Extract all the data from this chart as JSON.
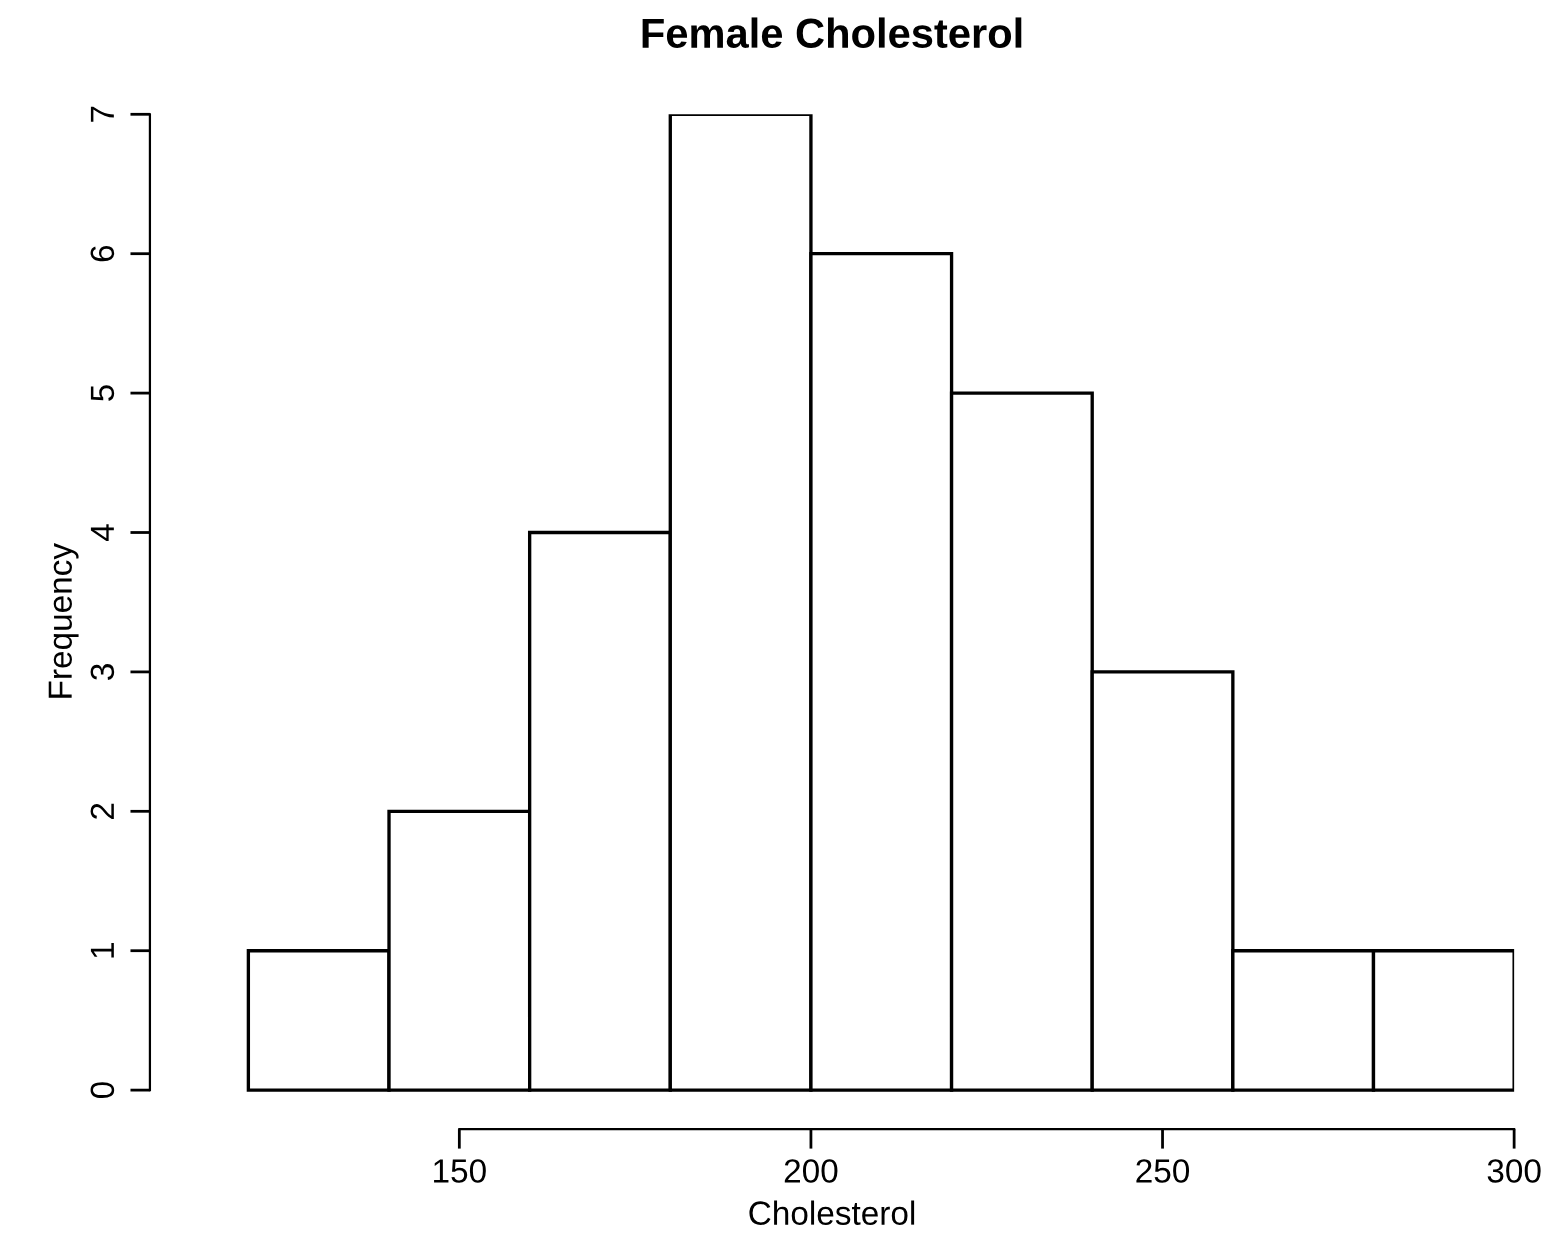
{
  "chart_data": {
    "type": "histogram",
    "title": "Female Cholesterol",
    "xlabel": "Cholesterol",
    "ylabel": "Frequency",
    "bins": [
      120,
      140,
      160,
      180,
      200,
      220,
      240,
      260,
      280,
      300
    ],
    "values": [
      1,
      2,
      4,
      7,
      6,
      5,
      3,
      1,
      1
    ],
    "color": "#ffffff",
    "xlim": [
      106,
      300
    ],
    "xticks": [
      150,
      200,
      250,
      300
    ],
    "ylim": [
      -0.28,
      7
    ],
    "yticks": [
      0,
      1,
      2,
      3,
      4,
      5,
      6,
      7
    ]
  }
}
